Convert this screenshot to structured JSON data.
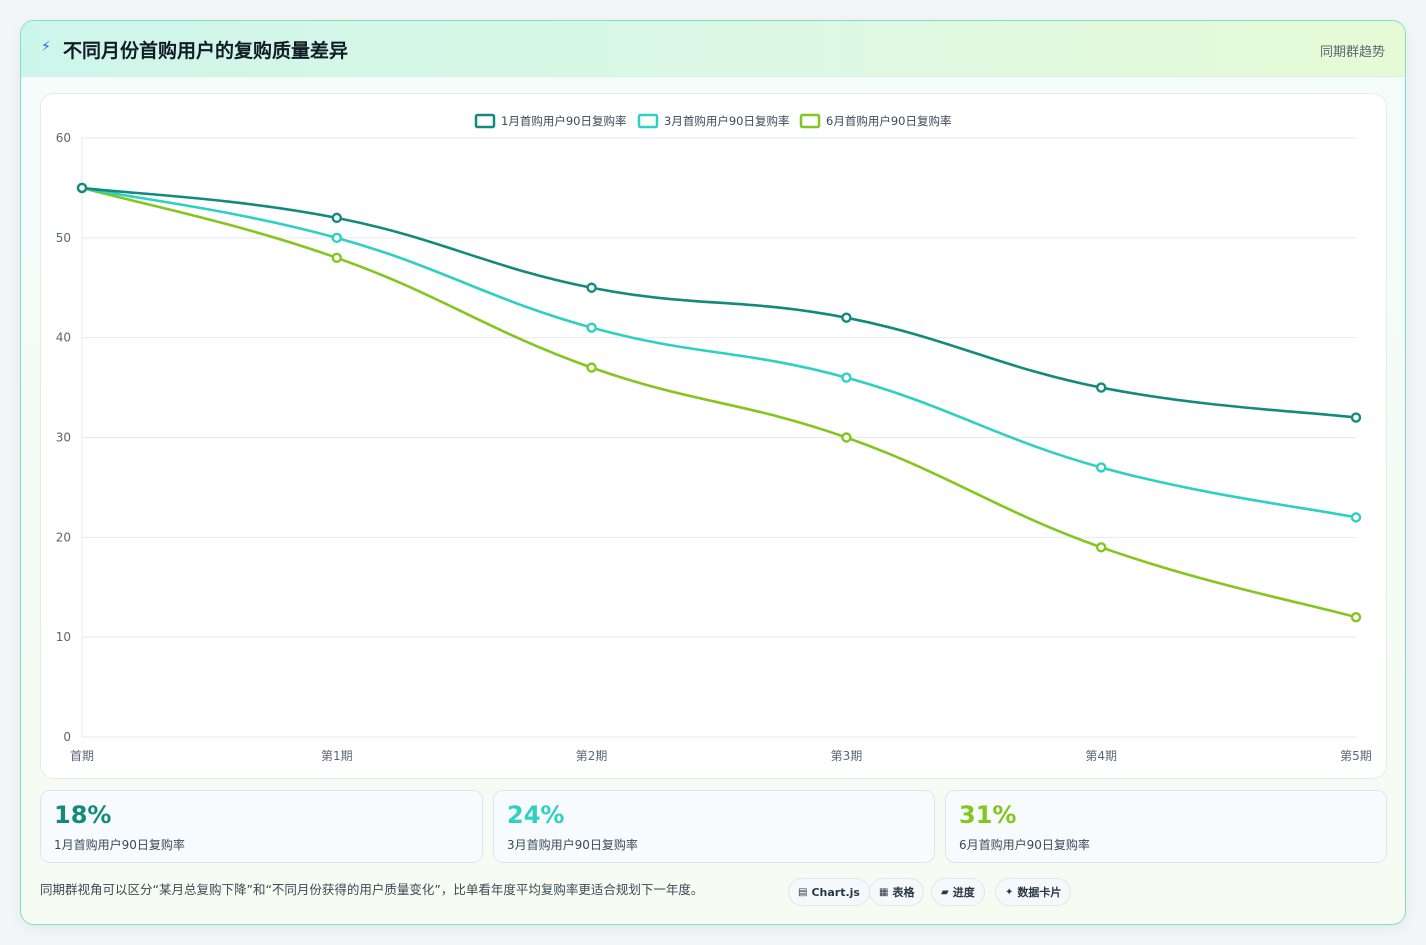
{
  "header": {
    "title": "不同月份首购用户的复购质量差异",
    "right_label": "同期群趋势",
    "icon": "lightning-icon"
  },
  "colors": {
    "series_1": "#138a7e",
    "series_2": "#2ed0c2",
    "series_3": "#84c61e",
    "grid": "#e5e9ec",
    "tick": "#5b6773"
  },
  "chart_data": {
    "type": "line",
    "categories": [
      "首期",
      "第1期",
      "第2期",
      "第3期",
      "第4期",
      "第5期"
    ],
    "series": [
      {
        "name": "1月首购用户90日复购率",
        "values": [
          55,
          52,
          45,
          42,
          35,
          32
        ]
      },
      {
        "name": "3月首购用户90日复购率",
        "values": [
          55,
          50,
          41,
          36,
          27,
          22
        ]
      },
      {
        "name": "6月首购用户90日复购率",
        "values": [
          55,
          48,
          37,
          30,
          19,
          12
        ]
      }
    ],
    "ylim": [
      0,
      60
    ],
    "yticks": [
      "0",
      "10",
      "20",
      "30",
      "40",
      "50",
      "60"
    ],
    "grid": true,
    "legend_position": "top-center"
  },
  "stats": [
    {
      "value": "18%",
      "label": "1月首购用户90日复购率"
    },
    {
      "value": "24%",
      "label": "3月首购用户90日复购率"
    },
    {
      "value": "31%",
      "label": "6月首购用户90日复购率"
    }
  ],
  "footnote": "同期群视角可以区分“某月总复购下降”和“不同月份获得的用户质量变化”，比单看年度平均复购率更适合规划下一年度。",
  "tags": [
    {
      "icon": "chart-icon",
      "glyph": "▤",
      "label": "Chart.js"
    },
    {
      "icon": "table-icon",
      "glyph": "▦",
      "label": "表格"
    },
    {
      "icon": "progress-icon",
      "glyph": "▰",
      "label": "进度"
    },
    {
      "icon": "data-card-icon",
      "glyph": "✦",
      "label": "数据卡片"
    }
  ]
}
